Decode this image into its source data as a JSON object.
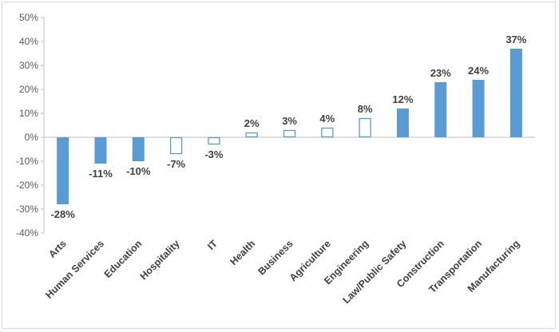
{
  "chart_data": {
    "type": "bar",
    "title": "",
    "xlabel": "",
    "ylabel": "",
    "ylim": [
      -40,
      50
    ],
    "ytick_step": 10,
    "ytick_labels": [
      "50%",
      "40%",
      "30%",
      "20%",
      "10%",
      "0%",
      "-10%",
      "-20%",
      "-30%",
      "-40%"
    ],
    "grid": false,
    "legend": "none",
    "categories": [
      "Arts",
      "Human Services",
      "Education",
      "Hospitality",
      "IT",
      "Health",
      "Business",
      "Agriculture",
      "Engineering",
      "Law/Public Safety",
      "Construction",
      "Transportation",
      "Manufacturing"
    ],
    "values": [
      -28,
      -11,
      -10,
      -7,
      -3,
      2,
      3,
      4,
      8,
      12,
      23,
      24,
      37
    ],
    "data_labels": [
      "-28%",
      "-11%",
      "-10%",
      "-7%",
      "-3%",
      "2%",
      "3%",
      "4%",
      "8%",
      "12%",
      "23%",
      "24%",
      "37%"
    ],
    "filled": [
      true,
      true,
      true,
      false,
      false,
      false,
      false,
      false,
      false,
      true,
      true,
      true,
      true
    ],
    "colors": {
      "bar": "#5b9bd5",
      "axis": "#bfbfbf",
      "text": "#404040",
      "tick_text": "#595959",
      "border": "#d9d9d9"
    }
  }
}
